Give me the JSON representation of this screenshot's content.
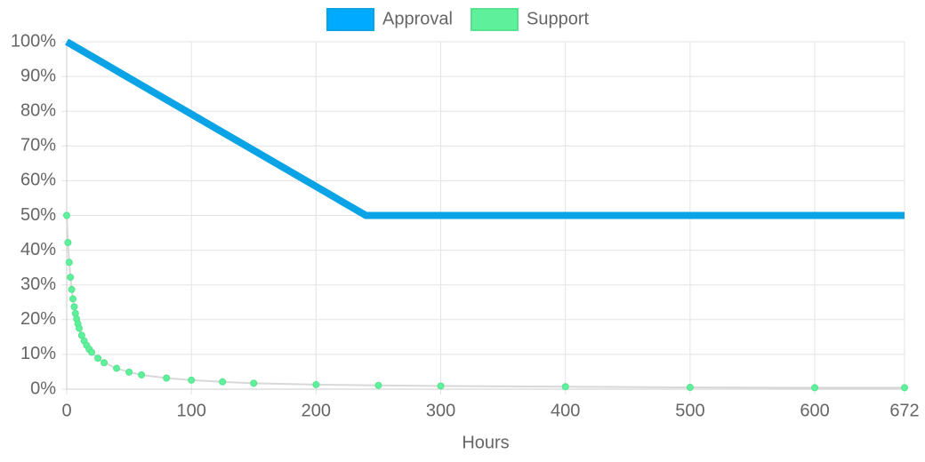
{
  "chart_data": {
    "type": "line",
    "x_label": "Hours",
    "series": [
      {
        "name": "Approval",
        "color": "#0aa3e6",
        "fill": "#00aaff",
        "x": [
          0,
          240,
          672
        ],
        "values": [
          100,
          50,
          50
        ]
      },
      {
        "name": "Support",
        "color": "#55e38f",
        "fill": "#5ef09a",
        "x": [
          0,
          1,
          2,
          3,
          4,
          5,
          6,
          7,
          8,
          9,
          10,
          12,
          14,
          16,
          18,
          20,
          25,
          30,
          40,
          50,
          60,
          80,
          100,
          125,
          150,
          200,
          250,
          300,
          400,
          500,
          600,
          672
        ],
        "values": [
          50,
          42.2,
          36.5,
          32.2,
          28.7,
          26.0,
          23.7,
          21.8,
          20.2,
          18.8,
          17.5,
          15.5,
          13.9,
          12.6,
          11.5,
          10.6,
          8.9,
          7.6,
          6.0,
          4.9,
          4.1,
          3.2,
          2.6,
          2.1,
          1.7,
          1.3,
          1.1,
          0.9,
          0.7,
          0.5,
          0.4,
          0.4
        ]
      }
    ],
    "xlim": [
      0,
      672
    ],
    "xticks": [
      0,
      100,
      200,
      300,
      400,
      500,
      600,
      672
    ],
    "ylim": [
      0,
      100
    ],
    "yticks": [
      {
        "value": 0,
        "label": "0%"
      },
      {
        "value": 10,
        "label": "10%"
      },
      {
        "value": 20,
        "label": "20%"
      },
      {
        "value": 30,
        "label": "30%"
      },
      {
        "value": 40,
        "label": "40%"
      },
      {
        "value": 50,
        "label": "50%"
      },
      {
        "value": 60,
        "label": "60%"
      },
      {
        "value": 70,
        "label": "70%"
      },
      {
        "value": 80,
        "label": "80%"
      },
      {
        "value": 90,
        "label": "90%"
      },
      {
        "value": 100,
        "label": "100%"
      }
    ],
    "grid": true,
    "legend": "top"
  }
}
